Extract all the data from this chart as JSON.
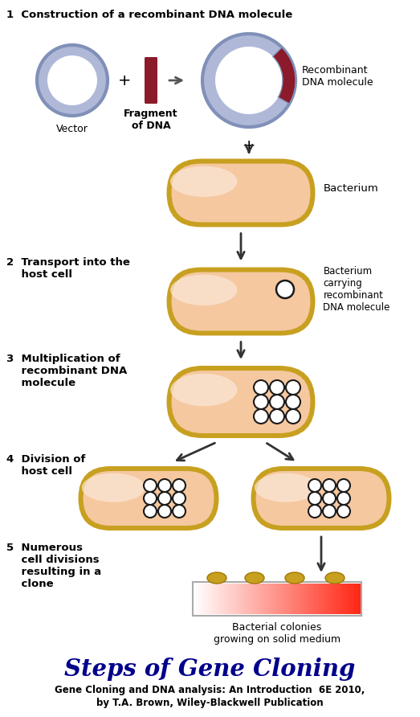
{
  "bg_color": "#ffffff",
  "title": "Steps of Gene Cloning",
  "subtitle1": "Gene Cloning and DNA analysis: An Introduction  6E 2010,",
  "subtitle2": "by T.A. Brown, Wiley-Blackwell Publication",
  "step1_label": "1  Construction of a recombinant DNA molecule",
  "step2_label": "2  Transport into the\n    host cell",
  "step3_label": "3  Multiplication of\n    recombinant DNA\n    molecule",
  "step4_label": "4  Division of\n    host cell",
  "step5_label": "5  Numerous\n    cell divisions\n    resulting in a\n    clone",
  "vector_label": "Vector",
  "dna_label": "Fragment\nof DNA",
  "recomb_label": "Recombinant\nDNA molecule",
  "bacterium_label": "Bacterium",
  "bact_carry_label": "Bacterium\ncarrying\nrecombinant\nDNA molecule",
  "colony_label": "Bacterial colonies\ngrowing on solid medium",
  "ring_blue": "#b0b8d8",
  "ring_blue_edge": "#8090b8",
  "dna_red": "#8b1a2a",
  "bact_gold": "#c8a020",
  "bact_gold_inner": "#d4aa30",
  "bact_peach": "#f5c8a0",
  "bact_peach_light": "#fce8d8",
  "small_circle_fill": "#ffffff",
  "small_circle_edge": "#1a1a1a",
  "arrow_color": "#333333",
  "text_color": "#000000",
  "title_color": "#00008b",
  "colony_fill": "#c8a020",
  "colony_edge": "#a07800",
  "plate_border": "#999999"
}
